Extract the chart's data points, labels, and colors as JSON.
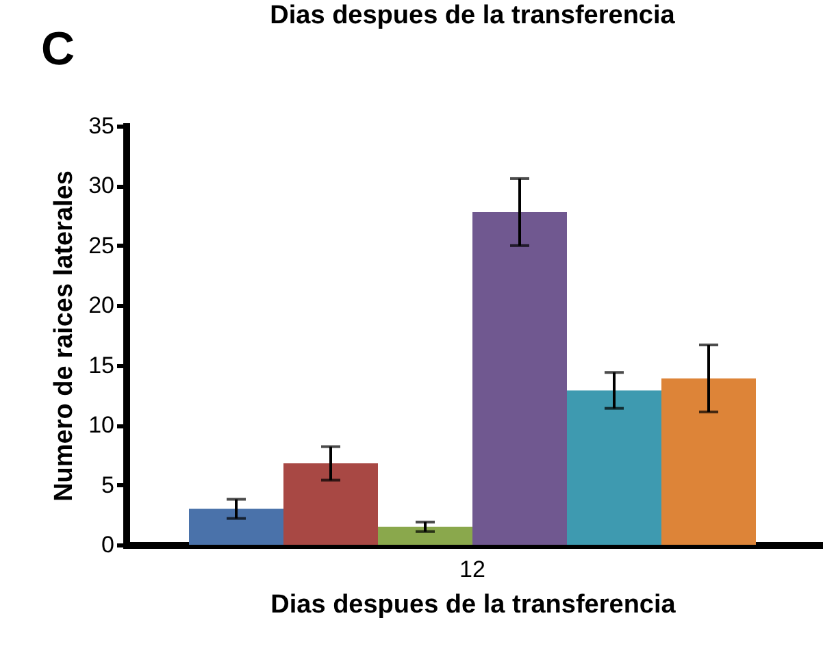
{
  "chart_data": {
    "type": "bar",
    "title": "C",
    "annotations": [
      "Dias despues de la transferencia"
    ],
    "xlabel": "Dias despues de la transferencia",
    "ylabel": "Numero de raices laterales",
    "categories": [
      "12"
    ],
    "series": [
      {
        "color": "#4a72aa",
        "values": [
          3.0
        ],
        "errors": [
          0.8
        ]
      },
      {
        "color": "#a84844",
        "values": [
          6.8
        ],
        "errors": [
          1.4
        ]
      },
      {
        "color": "#8aa84c",
        "values": [
          1.5
        ],
        "errors": [
          0.4
        ]
      },
      {
        "color": "#705890",
        "values": [
          27.8
        ],
        "errors": [
          2.8
        ]
      },
      {
        "color": "#3e9ab0",
        "values": [
          12.9
        ],
        "errors": [
          1.5
        ]
      },
      {
        "color": "#dd8438",
        "values": [
          13.9
        ],
        "errors": [
          2.8
        ]
      }
    ],
    "ylim": [
      0,
      35
    ],
    "yticks": [
      0,
      5,
      10,
      15,
      20,
      25,
      30,
      35
    ],
    "grid": false,
    "legend": false
  }
}
